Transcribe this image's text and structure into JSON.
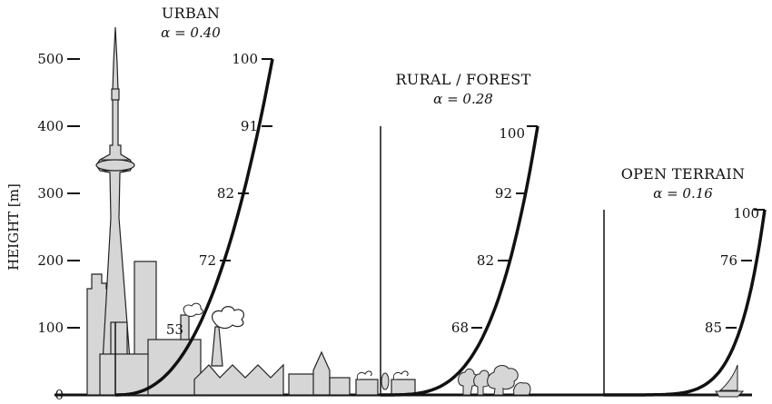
{
  "axis": {
    "label": "HEIGHT [m]",
    "ticks": [
      "0",
      "100",
      "200",
      "300",
      "400",
      "500"
    ]
  },
  "profiles": [
    {
      "key": "urban",
      "title": "URBAN",
      "alpha_label": "α = 0.40",
      "alpha": 0.4,
      "labels": [
        "53",
        "72",
        "82",
        "91",
        "100"
      ]
    },
    {
      "key": "rural",
      "title": "RURAL / FOREST",
      "alpha_label": "α = 0.28",
      "alpha": 0.28,
      "labels": [
        "68",
        "82",
        "92",
        "100"
      ]
    },
    {
      "key": "open",
      "title": "OPEN TERRAIN",
      "alpha_label": "α = 0.16",
      "alpha": 0.16,
      "labels": [
        "85",
        "76",
        "100"
      ]
    }
  ],
  "colors": {
    "ink": "#111111",
    "building_fill": "#d6d6d6",
    "background": "#ffffff"
  }
}
